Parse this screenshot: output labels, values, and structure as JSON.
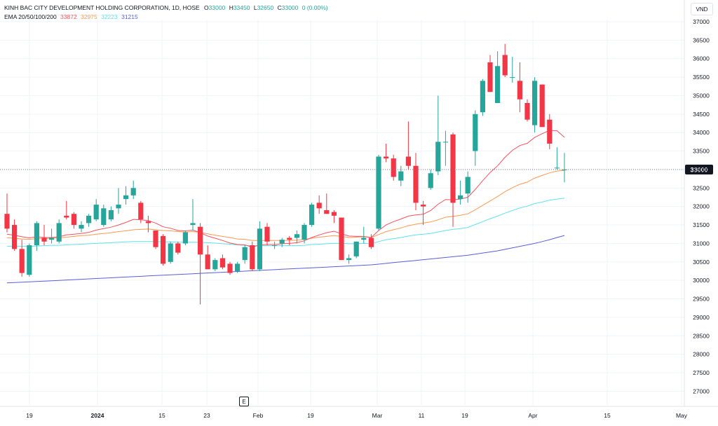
{
  "header": {
    "symbol_line": {
      "name": "KINH BAC CITY DEVELOPMENT HOLDING CORPORATION, 1D, HOSE",
      "o_label": "O",
      "o_value": "33000",
      "h_label": "H",
      "h_value": "33450",
      "l_label": "L",
      "l_value": "32650",
      "c_label": "C",
      "c_value": "33000",
      "change": "0 (0.00%)"
    },
    "ema_line": {
      "label": "EMA 20/50/100/200",
      "ema20": "33872",
      "ema50": "32975",
      "ema100": "32223",
      "ema200": "31215"
    }
  },
  "currency": "VND",
  "event_marker": "E",
  "colors": {
    "up": "#26a69a",
    "down": "#f23645",
    "ema20": "#f7525f",
    "ema50": "#ff9850",
    "ema100": "#5ee2ee",
    "ema200": "#5b5fd6",
    "price_label_bg": "#131722",
    "grid": "#f0f3fa",
    "axis_text": "#131722"
  },
  "chart_data": {
    "type": "candlestick",
    "ylim": [
      26600,
      37300
    ],
    "y_ticks": [
      27000,
      27500,
      28000,
      28500,
      29000,
      29500,
      30000,
      30500,
      31000,
      31500,
      32000,
      32500,
      33000,
      33500,
      34000,
      34500,
      35000,
      35500,
      36000,
      36500,
      37000
    ],
    "x_tick_labels": [
      "19",
      "2024",
      "15",
      "23",
      "Feb",
      "19",
      "Mar",
      "11",
      "19",
      "Apr",
      "15",
      "May"
    ],
    "last_price": 33000,
    "candles": [
      {
        "o": 31800,
        "h": 32350,
        "l": 31300,
        "c": 31400
      },
      {
        "o": 31500,
        "h": 31650,
        "l": 30800,
        "c": 30850
      },
      {
        "o": 30850,
        "h": 31100,
        "l": 30100,
        "c": 30200
      },
      {
        "o": 30150,
        "h": 31000,
        "l": 30100,
        "c": 30950
      },
      {
        "o": 30950,
        "h": 31600,
        "l": 30800,
        "c": 31550
      },
      {
        "o": 31150,
        "h": 31500,
        "l": 30950,
        "c": 31050
      },
      {
        "o": 31100,
        "h": 31400,
        "l": 31000,
        "c": 31150
      },
      {
        "o": 31050,
        "h": 31650,
        "l": 31000,
        "c": 31550
      },
      {
        "o": 31750,
        "h": 32150,
        "l": 31650,
        "c": 31700
      },
      {
        "o": 31800,
        "h": 31850,
        "l": 31400,
        "c": 31500
      },
      {
        "o": 31400,
        "h": 31600,
        "l": 31300,
        "c": 31500
      },
      {
        "o": 31550,
        "h": 31800,
        "l": 31450,
        "c": 31750
      },
      {
        "o": 31650,
        "h": 32200,
        "l": 31600,
        "c": 32050
      },
      {
        "o": 31500,
        "h": 32050,
        "l": 31450,
        "c": 31950
      },
      {
        "o": 31650,
        "h": 32000,
        "l": 31600,
        "c": 31900
      },
      {
        "o": 31950,
        "h": 32500,
        "l": 31800,
        "c": 32050
      },
      {
        "o": 32200,
        "h": 32550,
        "l": 32050,
        "c": 32300
      },
      {
        "o": 32300,
        "h": 32700,
        "l": 32200,
        "c": 32500
      },
      {
        "o": 32100,
        "h": 32150,
        "l": 31550,
        "c": 31650
      },
      {
        "o": 31600,
        "h": 31750,
        "l": 31300,
        "c": 31550
      },
      {
        "o": 31350,
        "h": 31350,
        "l": 30850,
        "c": 30900
      },
      {
        "o": 31200,
        "h": 31250,
        "l": 30400,
        "c": 30450
      },
      {
        "o": 30500,
        "h": 31050,
        "l": 30450,
        "c": 31000
      },
      {
        "o": 31000,
        "h": 31050,
        "l": 30700,
        "c": 30750
      },
      {
        "o": 31000,
        "h": 31350,
        "l": 30950,
        "c": 31300
      },
      {
        "o": 31500,
        "h": 32200,
        "l": 31350,
        "c": 31550
      },
      {
        "o": 31450,
        "h": 31550,
        "l": 29350,
        "c": 30700
      },
      {
        "o": 30700,
        "h": 30950,
        "l": 30300,
        "c": 30300
      },
      {
        "o": 30300,
        "h": 30600,
        "l": 30250,
        "c": 30550
      },
      {
        "o": 30600,
        "h": 30700,
        "l": 30300,
        "c": 30350
      },
      {
        "o": 30450,
        "h": 30500,
        "l": 30150,
        "c": 30200
      },
      {
        "o": 30250,
        "h": 30500,
        "l": 30200,
        "c": 30450
      },
      {
        "o": 30550,
        "h": 30950,
        "l": 30450,
        "c": 30900
      },
      {
        "o": 30950,
        "h": 31050,
        "l": 30250,
        "c": 30300
      },
      {
        "o": 30300,
        "h": 31600,
        "l": 30250,
        "c": 31400
      },
      {
        "o": 31450,
        "h": 31550,
        "l": 30950,
        "c": 31050
      },
      {
        "o": 30950,
        "h": 31050,
        "l": 30850,
        "c": 30950
      },
      {
        "o": 31000,
        "h": 31150,
        "l": 30900,
        "c": 31100
      },
      {
        "o": 31150,
        "h": 31200,
        "l": 30950,
        "c": 31100
      },
      {
        "o": 31150,
        "h": 31350,
        "l": 31000,
        "c": 31250
      },
      {
        "o": 31100,
        "h": 31550,
        "l": 31000,
        "c": 31500
      },
      {
        "o": 31500,
        "h": 32100,
        "l": 31450,
        "c": 32050
      },
      {
        "o": 32100,
        "h": 32300,
        "l": 31800,
        "c": 31950
      },
      {
        "o": 31900,
        "h": 32350,
        "l": 31800,
        "c": 31800
      },
      {
        "o": 31850,
        "h": 31900,
        "l": 31550,
        "c": 31750
      },
      {
        "o": 31700,
        "h": 31700,
        "l": 30550,
        "c": 30550
      },
      {
        "o": 30550,
        "h": 30700,
        "l": 30450,
        "c": 30600
      },
      {
        "o": 30650,
        "h": 31050,
        "l": 30600,
        "c": 31050
      },
      {
        "o": 31100,
        "h": 31450,
        "l": 31000,
        "c": 31150
      },
      {
        "o": 31150,
        "h": 31250,
        "l": 30850,
        "c": 30900
      },
      {
        "o": 31400,
        "h": 33400,
        "l": 31350,
        "c": 33350
      },
      {
        "o": 33350,
        "h": 33700,
        "l": 33200,
        "c": 33300
      },
      {
        "o": 33300,
        "h": 33400,
        "l": 32700,
        "c": 32800
      },
      {
        "o": 32700,
        "h": 33100,
        "l": 32550,
        "c": 32950
      },
      {
        "o": 33350,
        "h": 34300,
        "l": 33000,
        "c": 33100
      },
      {
        "o": 33100,
        "h": 33450,
        "l": 31900,
        "c": 32100
      },
      {
        "o": 32050,
        "h": 32150,
        "l": 31500,
        "c": 32000
      },
      {
        "o": 32500,
        "h": 33000,
        "l": 32450,
        "c": 32900
      },
      {
        "o": 32950,
        "h": 35000,
        "l": 32850,
        "c": 33750
      },
      {
        "o": 33750,
        "h": 34050,
        "l": 33100,
        "c": 33750
      },
      {
        "o": 33950,
        "h": 34000,
        "l": 31450,
        "c": 32100
      },
      {
        "o": 32200,
        "h": 32700,
        "l": 32050,
        "c": 32300
      },
      {
        "o": 32350,
        "h": 32950,
        "l": 32100,
        "c": 32800
      },
      {
        "o": 33500,
        "h": 34600,
        "l": 33100,
        "c": 34500
      },
      {
        "o": 34550,
        "h": 35450,
        "l": 34450,
        "c": 35400
      },
      {
        "o": 35900,
        "h": 36100,
        "l": 35100,
        "c": 35100
      },
      {
        "o": 34800,
        "h": 36200,
        "l": 34800,
        "c": 35800
      },
      {
        "o": 36100,
        "h": 36400,
        "l": 35500,
        "c": 35550
      },
      {
        "o": 35500,
        "h": 36050,
        "l": 35350,
        "c": 35500
      },
      {
        "o": 35400,
        "h": 35900,
        "l": 34550,
        "c": 34900
      },
      {
        "o": 34800,
        "h": 34900,
        "l": 34300,
        "c": 34350
      },
      {
        "o": 34200,
        "h": 35500,
        "l": 34000,
        "c": 35400
      },
      {
        "o": 35300,
        "h": 35300,
        "l": 34200,
        "c": 34150
      },
      {
        "o": 34350,
        "h": 34500,
        "l": 33550,
        "c": 33700
      },
      {
        "o": 33050,
        "h": 33600,
        "l": 33000,
        "c": 33050
      },
      {
        "o": 33000,
        "h": 33450,
        "l": 32650,
        "c": 33000
      }
    ],
    "ema20": [
      31250,
      31220,
      31180,
      31150,
      31180,
      31160,
      31160,
      31180,
      31230,
      31250,
      31270,
      31300,
      31360,
      31400,
      31440,
      31500,
      31570,
      31650,
      31640,
      31620,
      31550,
      31450,
      31410,
      31350,
      31340,
      31360,
      31290,
      31200,
      31140,
      31080,
      31010,
      30970,
      30960,
      30900,
      30960,
      30970,
      30970,
      30990,
      31000,
      31020,
      31070,
      31160,
      31230,
      31290,
      31330,
      31260,
      31200,
      31190,
      31190,
      31160,
      31350,
      31500,
      31590,
      31660,
      31740,
      31770,
      31790,
      31890,
      32060,
      32190,
      32180,
      32200,
      32250,
      32460,
      32700,
      32920,
      33100,
      33330,
      33520,
      33650,
      33710,
      33870,
      33970,
      34060,
      34050,
      33872
    ],
    "ema50": [
      31150,
      31140,
      31120,
      31110,
      31130,
      31130,
      31140,
      31150,
      31170,
      31190,
      31210,
      31220,
      31250,
      31270,
      31290,
      31320,
      31340,
      31370,
      31380,
      31390,
      31370,
      31350,
      31340,
      31320,
      31310,
      31320,
      31300,
      31260,
      31220,
      31190,
      31160,
      31120,
      31110,
      31080,
      31080,
      31080,
      31080,
      31080,
      31080,
      31090,
      31110,
      31140,
      31170,
      31190,
      31210,
      31190,
      31160,
      31170,
      31180,
      31160,
      31240,
      31320,
      31370,
      31420,
      31480,
      31520,
      31550,
      31580,
      31640,
      31710,
      31730,
      31760,
      31800,
      31910,
      32030,
      32150,
      32270,
      32400,
      32510,
      32600,
      32660,
      32770,
      32840,
      32910,
      32960,
      32975
    ],
    "ema100": [
      30920,
      30920,
      30920,
      30920,
      30930,
      30940,
      30950,
      30950,
      30960,
      30970,
      30980,
      30990,
      31000,
      31010,
      31020,
      31030,
      31040,
      31050,
      31050,
      31050,
      31050,
      31040,
      31040,
      31030,
      31030,
      31030,
      31030,
      31020,
      31010,
      30990,
      30980,
      30960,
      30950,
      30940,
      30940,
      30940,
      30940,
      30940,
      30940,
      30940,
      30950,
      30970,
      30980,
      30990,
      31000,
      31000,
      30990,
      30990,
      31000,
      30990,
      31050,
      31100,
      31130,
      31160,
      31200,
      31230,
      31250,
      31270,
      31310,
      31350,
      31380,
      31400,
      31430,
      31510,
      31590,
      31670,
      31740,
      31820,
      31890,
      31960,
      32010,
      32080,
      32120,
      32170,
      32200,
      32223
    ],
    "ema200": [
      29930,
      29940,
      29950,
      29960,
      29970,
      29980,
      29990,
      30000,
      30010,
      30020,
      30030,
      30040,
      30050,
      30060,
      30070,
      30080,
      30090,
      30100,
      30110,
      30120,
      30130,
      30140,
      30150,
      30160,
      30170,
      30180,
      30190,
      30200,
      30210,
      30220,
      30230,
      30240,
      30250,
      30260,
      30270,
      30280,
      30290,
      30300,
      30310,
      30320,
      30330,
      30340,
      30350,
      30360,
      30370,
      30380,
      30390,
      30400,
      30410,
      30420,
      30440,
      30460,
      30480,
      30500,
      30520,
      30540,
      30560,
      30580,
      30600,
      30620,
      30640,
      30660,
      30680,
      30710,
      30740,
      30770,
      30800,
      30840,
      30880,
      30920,
      30960,
      31000,
      31050,
      31100,
      31160,
      31215
    ]
  }
}
